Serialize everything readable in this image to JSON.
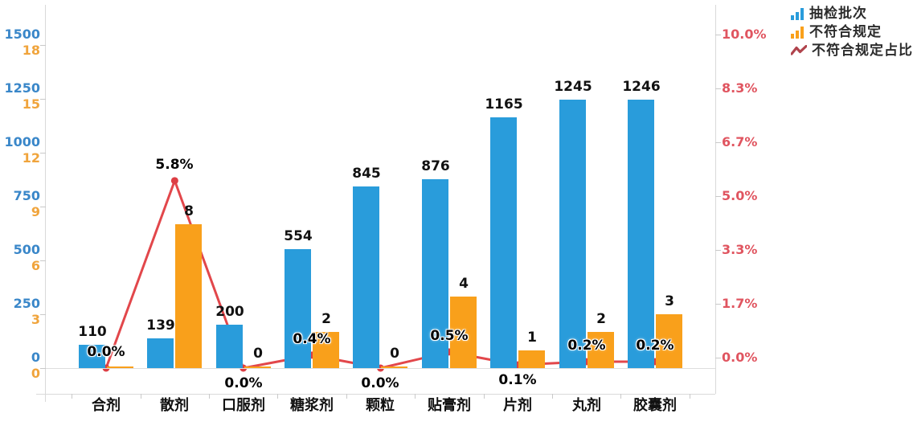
{
  "chart_data": {
    "type": "bar",
    "subtype": "dual-axis bar + line combo",
    "title": "",
    "categories": [
      "合剂",
      "散剂",
      "口服剂",
      "糖浆剂",
      "颗粒",
      "贴膏剂",
      "片剂",
      "丸剂",
      "胶囊剂"
    ],
    "series": [
      {
        "name": "抽检批次",
        "type": "bar",
        "y_axis": "left_blue",
        "values": [
          110,
          139,
          200,
          554,
          845,
          876,
          1165,
          1245,
          1246
        ],
        "labels": [
          "110",
          "139",
          "200",
          "554",
          "845",
          "876",
          "1165",
          "1245",
          "1246"
        ]
      },
      {
        "name": "不符合规定",
        "type": "bar",
        "y_axis": "left_orange",
        "values": [
          0,
          8,
          0,
          2,
          0,
          4,
          1,
          2,
          3
        ],
        "labels": [
          "",
          "8",
          "0",
          "2",
          "0",
          "4",
          "1",
          "2",
          "3"
        ],
        "label_visible": [
          false,
          true,
          true,
          true,
          true,
          true,
          true,
          true,
          true
        ]
      },
      {
        "name": "不符合规定占比",
        "type": "line",
        "y_axis": "right",
        "values_percent": [
          0.0,
          5.8,
          0.0,
          0.4,
          0.0,
          0.5,
          0.1,
          0.2,
          0.2
        ],
        "labels": [
          "0.0%",
          "5.8%",
          "0.0%",
          "0.4%",
          "0.0%",
          "0.5%",
          "0.1%",
          "0.2%",
          "0.2%"
        ],
        "label_side": [
          "above",
          "above",
          "below",
          "above",
          "below",
          "above",
          "below",
          "above",
          "above"
        ]
      }
    ],
    "axes": {
      "left_blue": {
        "ticks": [
          "0",
          "250",
          "500",
          "750",
          "1000",
          "1250",
          "1500"
        ],
        "min": 0,
        "max": 1500
      },
      "left_orange": {
        "ticks": [
          "0",
          "3",
          "6",
          "9",
          "12",
          "15",
          "18"
        ],
        "min": 0,
        "max": 18
      },
      "right": {
        "ticks": [
          "0.0%",
          "1.7%",
          "3.3%",
          "5.0%",
          "6.7%",
          "8.3%",
          "10.0%"
        ],
        "min": 0,
        "max": 10
      }
    },
    "legend": {
      "position": "top-right",
      "items": [
        {
          "label": "抽检批次",
          "icon": "bar-chart-icon"
        },
        {
          "label": "不符合规定",
          "icon": "bar-chart-icon"
        },
        {
          "label": "不符合规定占比",
          "icon": "zigzag-line-icon"
        }
      ]
    },
    "grid": false,
    "xlabel": "",
    "ylabel": ""
  },
  "colors": {
    "bar_blue": "#299CDB",
    "bar_orange": "#F9A01B",
    "line_red": "#E2474B",
    "dot_red": "#DD3E44",
    "axis_label_blue": "#3A87C9",
    "axis_label_orange": "#F0A43C",
    "axis_label_red": "#E05560",
    "legend_line_red": "#B0434C",
    "axis_line": "#D9D9D9",
    "value_label": "#111111",
    "legend_text": "#2B2B2B"
  }
}
